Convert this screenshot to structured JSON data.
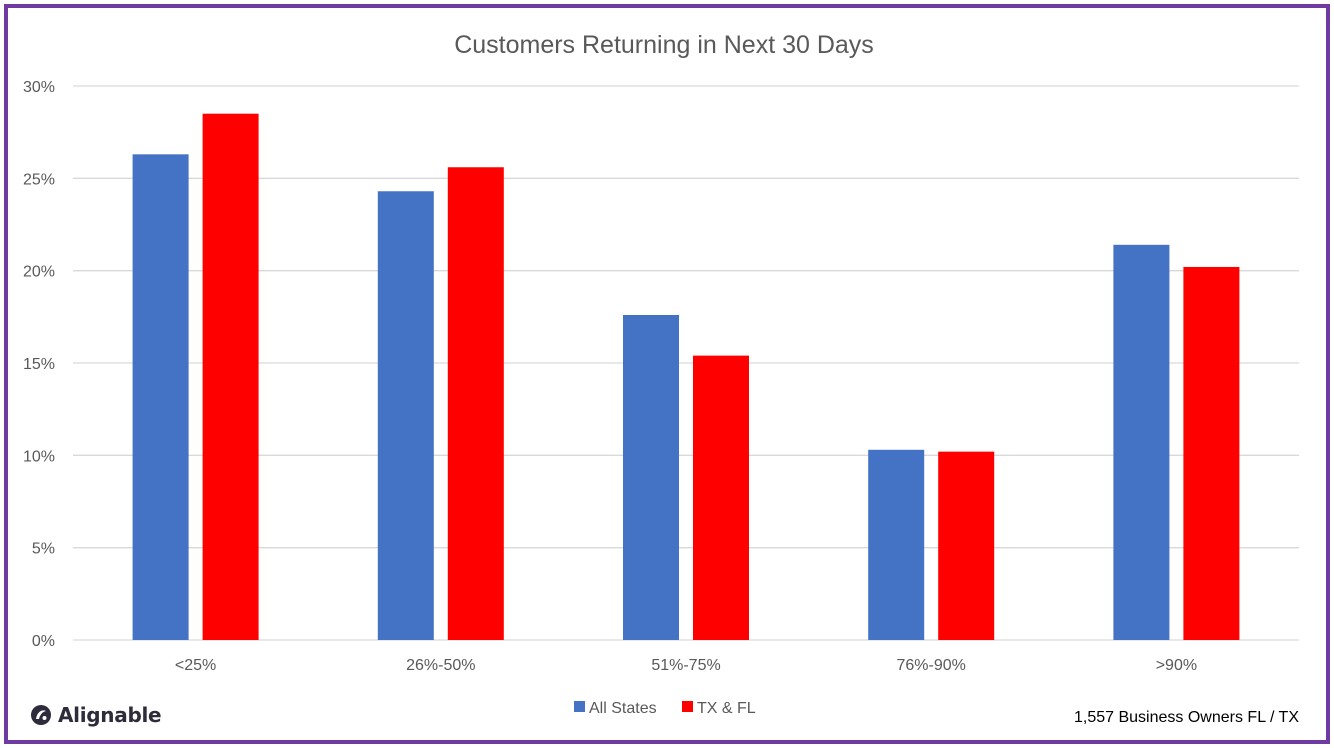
{
  "chart_data": {
    "type": "bar",
    "title": "Customers Returning in Next 30 Days",
    "xlabel": "",
    "ylabel": "",
    "categories": [
      "<25%",
      "26%-50%",
      "51%-75%",
      "76%-90%",
      ">90%"
    ],
    "series": [
      {
        "name": "All States",
        "color": "#4472c4",
        "values": [
          26.3,
          24.3,
          17.6,
          10.3,
          21.4
        ]
      },
      {
        "name": "TX & FL",
        "color": "#ff0000",
        "values": [
          28.5,
          25.6,
          15.4,
          10.2,
          20.2
        ]
      }
    ],
    "ylim": [
      0,
      30
    ],
    "yticks": [
      0,
      5,
      10,
      15,
      20,
      25,
      30
    ],
    "ytick_labels": [
      "0%",
      "5%",
      "10%",
      "15%",
      "20%",
      "25%",
      "30%"
    ],
    "grid": true,
    "legend_position": "bottom"
  },
  "brand": {
    "name": "Alignable",
    "icon": "alignable-logo-icon"
  },
  "footnote": "1,557 Business Owners FL / TX",
  "colors": {
    "frame": "#6f3ba0",
    "grid": "#d9d9d9",
    "axis_text": "#595959"
  }
}
